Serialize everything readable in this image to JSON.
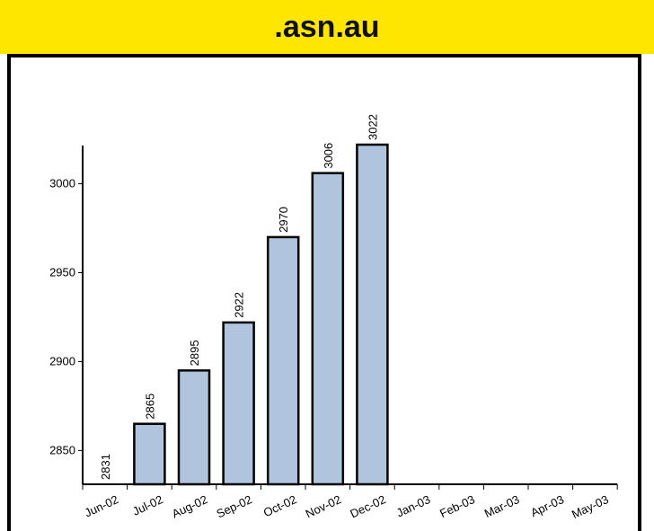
{
  "title": ".asn.au",
  "colors": {
    "title_bar": "#ffe600",
    "bar_fill": "#b0c4de",
    "bar_stroke": "#000000"
  },
  "chart_data": {
    "type": "bar",
    "title": ".asn.au",
    "xlabel": "",
    "ylabel": "",
    "categories": [
      "Jun-02",
      "Jul-02",
      "Aug-02",
      "Sep-02",
      "Oct-02",
      "Nov-02",
      "Dec-02",
      "Jan-03",
      "Feb-03",
      "Mar-03",
      "Apr-03",
      "May-03"
    ],
    "values": [
      2831,
      2865,
      2895,
      2922,
      2970,
      3006,
      3022,
      null,
      null,
      null,
      null,
      null
    ],
    "value_labels": [
      "2831",
      "2865",
      "2895",
      "2922",
      "2970",
      "3006",
      "3022",
      "",
      "",
      "",
      "",
      ""
    ],
    "y_ticks": [
      2850,
      2900,
      2950,
      3000
    ],
    "y_tick_labels": [
      "2850",
      "2900",
      "2950",
      "3000"
    ],
    "ylim": [
      2831,
      3022
    ],
    "grid": false,
    "legend": "none"
  }
}
